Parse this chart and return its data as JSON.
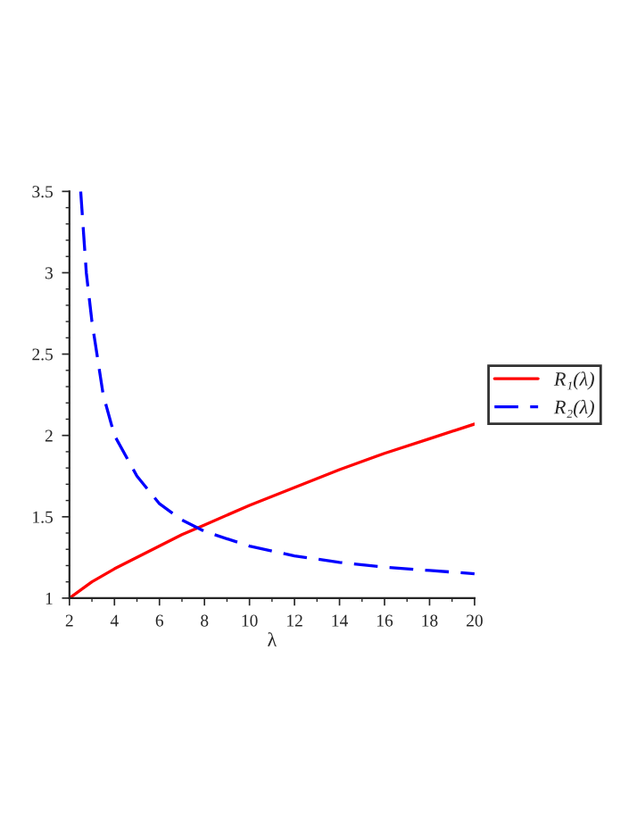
{
  "chart_data": {
    "type": "line",
    "xlabel": "λ",
    "x": [
      2,
      3,
      4,
      5,
      6,
      7,
      8,
      10,
      12,
      14,
      16,
      18,
      20
    ],
    "series": [
      {
        "name": "R₁(λ)",
        "color": "#ff0000",
        "line_style": "solid",
        "values": [
          1.0,
          1.1,
          1.18,
          1.25,
          1.32,
          1.39,
          1.45,
          1.57,
          1.68,
          1.79,
          1.89,
          1.98,
          2.07
        ]
      },
      {
        "name": "R₂(λ)",
        "color": "#0000ff",
        "line_style": "dashed",
        "x": [
          2.5,
          2.75,
          3,
          3.5,
          4,
          5,
          6,
          7,
          8,
          10,
          12,
          14,
          16,
          18,
          20
        ],
        "values": [
          3.5,
          3.0,
          2.7,
          2.25,
          2.0,
          1.75,
          1.58,
          1.48,
          1.41,
          1.32,
          1.26,
          1.22,
          1.19,
          1.17,
          1.15
        ]
      }
    ],
    "xlim": [
      2,
      20
    ],
    "xticks": [
      2,
      4,
      6,
      8,
      10,
      12,
      14,
      16,
      18,
      20
    ],
    "ylim": [
      1,
      3.5
    ],
    "yticks": [
      1,
      1.5,
      2,
      2.5,
      3,
      3.5
    ],
    "grid": false,
    "legend": "right",
    "marker": "none"
  }
}
